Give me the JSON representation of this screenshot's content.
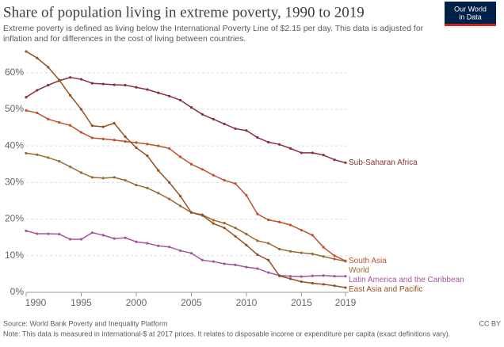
{
  "chart_data": {
    "type": "line",
    "title": "Share of population living in extreme poverty, 1990 to 2019",
    "subtitle": [
      "Extreme poverty is defined as living below the International Poverty Line of $2.15 per day. This data is adjusted for",
      "inflation and for differences in the cost of living between countries."
    ],
    "logo": [
      "Our World",
      "in Data"
    ],
    "source": "Source: World Bank Poverty and Inequality Platform",
    "note": "Note: This data is measured in international-$ at 2017 prices. It relates to disposable income or expenditure per capita (exact definitions vary).",
    "license": "CC BY",
    "x": [
      1990,
      1991,
      1992,
      1993,
      1994,
      1995,
      1996,
      1997,
      1998,
      1999,
      2000,
      2001,
      2002,
      2003,
      2004,
      2005,
      2006,
      2007,
      2008,
      2009,
      2010,
      2011,
      2012,
      2013,
      2014,
      2015,
      2016,
      2017,
      2018,
      2019
    ],
    "xlim": [
      1990,
      2019
    ],
    "xticks": [
      1990,
      1995,
      2000,
      2005,
      2010,
      2015,
      2019
    ],
    "ylim": [
      0,
      66
    ],
    "yticks": [
      {
        "value": 0,
        "label": "0%"
      },
      {
        "value": 10,
        "label": "10%"
      },
      {
        "value": 20,
        "label": "20%"
      },
      {
        "value": 30,
        "label": "30%"
      },
      {
        "value": 40,
        "label": "40%"
      },
      {
        "value": 50,
        "label": "50%"
      },
      {
        "value": 60,
        "label": "60%"
      }
    ],
    "grid": true,
    "series": [
      {
        "name": "Sub-Saharan Africa",
        "color": "#883039",
        "values": [
          53.3,
          55.2,
          56.6,
          57.8,
          58.7,
          58.2,
          57.1,
          56.9,
          56.7,
          56.6,
          56.0,
          55.4,
          54.5,
          53.6,
          52.5,
          50.5,
          48.6,
          47.3,
          46.0,
          44.7,
          44.2,
          42.3,
          41.0,
          40.4,
          39.3,
          38.1,
          38.1,
          37.5,
          36.2,
          35.4
        ]
      },
      {
        "name": "South Asia",
        "color": "#c0502b",
        "values": [
          49.7,
          49.0,
          47.3,
          46.4,
          45.6,
          43.7,
          42.2,
          41.9,
          41.6,
          41.2,
          40.9,
          40.5,
          40.0,
          39.3,
          37.0,
          35.0,
          33.6,
          32.0,
          30.6,
          29.7,
          26.5,
          21.4,
          19.8,
          19.2,
          18.4,
          17.0,
          15.6,
          12.3,
          10.0,
          8.6
        ]
      },
      {
        "name": "World",
        "color": "#9a6a34",
        "values": [
          38.0,
          37.6,
          36.8,
          35.8,
          34.3,
          32.7,
          31.4,
          31.2,
          31.4,
          30.6,
          29.3,
          28.5,
          27.1,
          25.5,
          23.6,
          21.8,
          21.2,
          19.7,
          18.9,
          17.6,
          15.9,
          14.1,
          13.4,
          11.8,
          11.2,
          10.8,
          10.5,
          9.8,
          9.1,
          8.5
        ]
      },
      {
        "name": "Latin America and the Caribbean",
        "color": "#a2559c",
        "values": [
          16.8,
          16.0,
          16.0,
          15.9,
          14.5,
          14.5,
          16.3,
          15.6,
          14.7,
          14.9,
          13.8,
          13.4,
          12.7,
          12.4,
          11.4,
          10.7,
          8.8,
          8.4,
          7.8,
          7.5,
          6.9,
          6.5,
          5.4,
          4.6,
          4.4,
          4.3,
          4.5,
          4.6,
          4.4,
          4.4
        ]
      },
      {
        "name": "East Asia and Pacific",
        "color": "#96501f",
        "values": [
          65.8,
          64.0,
          61.5,
          58.0,
          53.8,
          50.0,
          45.5,
          45.2,
          46.2,
          42.5,
          39.5,
          37.3,
          33.3,
          30.0,
          26.3,
          21.8,
          21.0,
          18.8,
          17.6,
          15.3,
          12.9,
          10.3,
          8.8,
          4.5,
          3.7,
          2.9,
          2.5,
          2.2,
          1.8,
          1.3
        ]
      }
    ]
  }
}
